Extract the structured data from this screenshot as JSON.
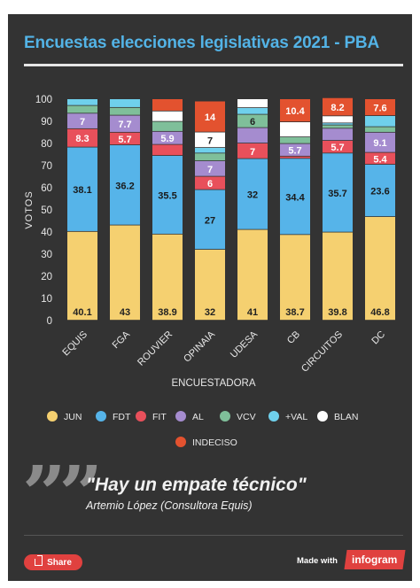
{
  "header": {
    "title": "Encuestas elecciones legislativas 2021 - PBA"
  },
  "quote": {
    "mark": "”",
    "text": "\"Hay un empate técnico\"",
    "author": "Artemio López (Consultora Equis)"
  },
  "footer": {
    "share_label": "Share",
    "made_with": "Made with",
    "brand": "infogram"
  },
  "chart_data": {
    "type": "bar",
    "stacked": true,
    "xlabel": "ENCUESTADORA",
    "ylabel": "VOTOS",
    "ylim": [
      0,
      100
    ],
    "yticks": [
      0,
      10,
      20,
      30,
      40,
      50,
      60,
      70,
      80,
      90,
      100
    ],
    "legend_position": "bottom",
    "categories": [
      "EQUIS",
      "FGA",
      "ROUVIER",
      "OPINAIA",
      "UDESA",
      "CB",
      "CIRCUITOS",
      "DC"
    ],
    "series": [
      {
        "name": "JUN",
        "color": "#f5d070",
        "values": [
          40.1,
          43,
          38.9,
          32,
          41,
          38.7,
          39.8,
          46.8
        ],
        "labels": [
          "40.1",
          "43",
          "38.9",
          "32",
          "41",
          "38.7",
          "39.8",
          "46.8"
        ]
      },
      {
        "name": "FDT",
        "color": "#56b4e9",
        "values": [
          38.1,
          36.2,
          35.5,
          27,
          32,
          34.4,
          35.7,
          23.6
        ],
        "labels": [
          "38.1",
          "36.2",
          "35.5",
          "27",
          "32",
          "34.4",
          "35.7",
          "23.6"
        ]
      },
      {
        "name": "FIT",
        "color": "#e8505b",
        "values": [
          8.3,
          5.7,
          5,
          6,
          7,
          1,
          5.7,
          5.4
        ],
        "labels": [
          "8.3",
          "5.7",
          "",
          "6",
          "7",
          "",
          "5.7",
          "5.4"
        ]
      },
      {
        "name": "AL",
        "color": "#a58ccf",
        "values": [
          7,
          7.7,
          5.9,
          7,
          7,
          5.7,
          5.5,
          9.1
        ],
        "labels": [
          "7",
          "7.7",
          "5.9",
          "7",
          "",
          "5.7",
          "",
          "9.1"
        ]
      },
      {
        "name": "VCV",
        "color": "#7fbf9a",
        "values": [
          3.5,
          3.5,
          4.5,
          3.5,
          6,
          3,
          1.5,
          2.5
        ],
        "labels": [
          "",
          "",
          "",
          "",
          "6",
          "",
          "",
          ""
        ]
      },
      {
        "name": "+VAL",
        "color": "#6fd0ec",
        "values": [
          3,
          3.9,
          0,
          2.5,
          3,
          0,
          0.9,
          5
        ],
        "labels": [
          "",
          "",
          "",
          "",
          "",
          "",
          "",
          ""
        ]
      },
      {
        "name": "BLAN",
        "color": "#ffffff",
        "values": [
          0,
          0,
          4.7,
          7,
          4,
          6.8,
          3.2,
          0
        ],
        "labels": [
          "",
          "",
          "",
          "7",
          "",
          "",
          "",
          ""
        ]
      },
      {
        "name": "INDECISO",
        "color": "#e3522f",
        "values": [
          0,
          0,
          5.5,
          14,
          0,
          10.4,
          8.2,
          7.6
        ],
        "labels": [
          "",
          "",
          "",
          "14",
          "",
          "10.4",
          "8.2",
          "7.6"
        ]
      }
    ]
  }
}
